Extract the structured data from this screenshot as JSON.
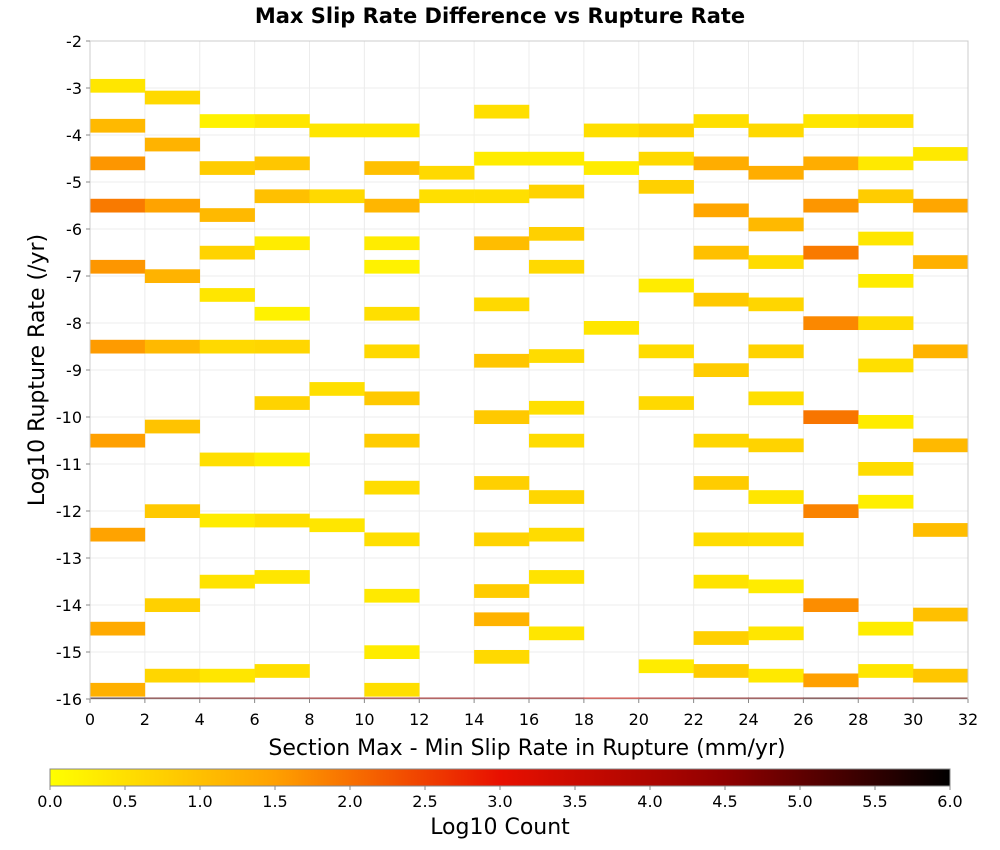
{
  "chart_data": {
    "type": "heatmap",
    "title": "Max Slip Rate Difference vs Rupture Rate",
    "xlabel": "Section Max - Min Slip Rate in Rupture (mm/yr)",
    "ylabel": "Log10 Rupture Rate (/yr)",
    "xlim": [
      0,
      32
    ],
    "ylim": [
      -16,
      -2
    ],
    "x_ticks": [
      "0",
      "2",
      "4",
      "6",
      "8",
      "10",
      "12",
      "14",
      "16",
      "18",
      "20",
      "22",
      "24",
      "26",
      "28",
      "30",
      "32"
    ],
    "y_ticks": [
      "-2",
      "-3",
      "-4",
      "-5",
      "-6",
      "-7",
      "-8",
      "-9",
      "-10",
      "-11",
      "-12",
      "-13",
      "-14",
      "-15",
      "-16"
    ],
    "x_bin_width": 2,
    "y_bin_height": 0.2857,
    "grid": true,
    "colorbar": {
      "label": "Log10 Count",
      "min": 0.0,
      "max": 6.0,
      "ticks": [
        "0.0",
        "0.5",
        "1.0",
        "1.5",
        "2.0",
        "2.5",
        "3.0",
        "3.5",
        "4.0",
        "4.5",
        "5.0",
        "5.5",
        "6.0"
      ],
      "stops": [
        {
          "v": 0.0,
          "color": "#ffff00"
        },
        {
          "v": 1.5,
          "color": "#ffa000"
        },
        {
          "v": 3.0,
          "color": "#e81000"
        },
        {
          "v": 4.5,
          "color": "#900000"
        },
        {
          "v": 6.0,
          "color": "#000000"
        }
      ]
    },
    "columns": [
      {
        "x0": 0,
        "cells": [
          [
            -2.95,
            0.4
          ],
          [
            -3.8,
            1.1
          ],
          [
            -4.6,
            1.6
          ],
          [
            -5.5,
            1.9
          ],
          [
            -6.8,
            1.6
          ],
          [
            -8.5,
            1.55
          ],
          [
            -10.5,
            1.5
          ],
          [
            -12.5,
            1.45
          ],
          [
            -14.5,
            1.35
          ],
          [
            -15.8,
            1.25
          ]
        ]
      },
      {
        "x0": 2,
        "cells": [
          [
            -3.2,
            0.6
          ],
          [
            -4.2,
            1.2
          ],
          [
            -5.5,
            1.45
          ],
          [
            -7.0,
            1.2
          ],
          [
            -8.5,
            1.1
          ],
          [
            -10.2,
            0.95
          ],
          [
            -12.0,
            0.85
          ],
          [
            -14.0,
            0.75
          ],
          [
            -15.5,
            0.65
          ]
        ]
      },
      {
        "x0": 4,
        "cells": [
          [
            -3.7,
            0.2
          ],
          [
            -4.7,
            0.8
          ],
          [
            -5.7,
            1.1
          ],
          [
            -6.5,
            0.7
          ],
          [
            -7.4,
            0.4
          ],
          [
            -8.5,
            0.6
          ],
          [
            -10.9,
            0.5
          ],
          [
            -12.2,
            0.3
          ],
          [
            -13.5,
            0.45
          ],
          [
            -15.5,
            0.4
          ]
        ]
      },
      {
        "x0": 6,
        "cells": [
          [
            -3.7,
            0.4
          ],
          [
            -4.6,
            0.9
          ],
          [
            -5.3,
            1.0
          ],
          [
            -6.3,
            0.3
          ],
          [
            -7.8,
            0.2
          ],
          [
            -8.5,
            0.65
          ],
          [
            -9.7,
            0.7
          ],
          [
            -10.9,
            0.25
          ],
          [
            -12.2,
            0.5
          ],
          [
            -13.4,
            0.4
          ],
          [
            -15.4,
            0.5
          ]
        ]
      },
      {
        "x0": 8,
        "cells": [
          [
            -3.9,
            0.4
          ],
          [
            -5.3,
            0.6
          ],
          [
            -9.4,
            0.5
          ],
          [
            -12.3,
            0.4
          ]
        ]
      },
      {
        "x0": 10,
        "cells": [
          [
            -3.9,
            0.4
          ],
          [
            -4.7,
            1.0
          ],
          [
            -5.5,
            1.15
          ],
          [
            -6.3,
            0.3
          ],
          [
            -6.8,
            0.2
          ],
          [
            -7.8,
            0.5
          ],
          [
            -8.6,
            0.6
          ],
          [
            -9.6,
            0.85
          ],
          [
            -10.5,
            0.8
          ],
          [
            -11.5,
            0.55
          ],
          [
            -12.6,
            0.5
          ],
          [
            -13.8,
            0.35
          ],
          [
            -15.0,
            0.3
          ],
          [
            -15.8,
            0.5
          ]
        ]
      },
      {
        "x0": 12,
        "cells": [
          [
            -4.8,
            0.6
          ],
          [
            -5.3,
            0.5
          ]
        ]
      },
      {
        "x0": 14,
        "cells": [
          [
            -3.5,
            0.5
          ],
          [
            -4.5,
            0.3
          ],
          [
            -5.3,
            0.5
          ],
          [
            -6.3,
            1.05
          ],
          [
            -7.6,
            0.6
          ],
          [
            -8.8,
            0.9
          ],
          [
            -10.0,
            0.85
          ],
          [
            -11.4,
            0.75
          ],
          [
            -12.6,
            0.7
          ],
          [
            -13.7,
            0.8
          ],
          [
            -14.3,
            1.2
          ],
          [
            -15.1,
            0.6
          ]
        ]
      },
      {
        "x0": 16,
        "cells": [
          [
            -4.5,
            0.3
          ],
          [
            -5.2,
            0.7
          ],
          [
            -6.1,
            0.75
          ],
          [
            -6.8,
            0.6
          ],
          [
            -8.7,
            0.55
          ],
          [
            -9.8,
            0.5
          ],
          [
            -10.5,
            0.55
          ],
          [
            -11.7,
            0.65
          ],
          [
            -12.5,
            0.55
          ],
          [
            -13.4,
            0.45
          ],
          [
            -14.6,
            0.4
          ]
        ]
      },
      {
        "x0": 18,
        "cells": [
          [
            -3.9,
            0.5
          ],
          [
            -4.7,
            0.3
          ],
          [
            -8.1,
            0.4
          ]
        ]
      },
      {
        "x0": 20,
        "cells": [
          [
            -3.9,
            0.7
          ],
          [
            -4.5,
            0.6
          ],
          [
            -5.1,
            0.75
          ],
          [
            -7.2,
            0.3
          ],
          [
            -8.6,
            0.55
          ],
          [
            -9.7,
            0.6
          ],
          [
            -15.3,
            0.3
          ]
        ]
      },
      {
        "x0": 22,
        "cells": [
          [
            -3.7,
            0.5
          ],
          [
            -4.6,
            1.3
          ],
          [
            -5.6,
            1.4
          ],
          [
            -6.5,
            1.0
          ],
          [
            -7.5,
            0.85
          ],
          [
            -9.0,
            0.8
          ],
          [
            -10.5,
            0.65
          ],
          [
            -11.4,
            0.8
          ],
          [
            -12.6,
            0.55
          ],
          [
            -13.5,
            0.45
          ],
          [
            -14.7,
            0.75
          ],
          [
            -15.4,
            0.8
          ]
        ]
      },
      {
        "x0": 24,
        "cells": [
          [
            -3.9,
            0.6
          ],
          [
            -4.8,
            1.3
          ],
          [
            -5.9,
            1.1
          ],
          [
            -6.7,
            0.55
          ],
          [
            -7.6,
            0.65
          ],
          [
            -8.6,
            0.7
          ],
          [
            -9.6,
            0.5
          ],
          [
            -10.6,
            0.7
          ],
          [
            -11.7,
            0.4
          ],
          [
            -12.6,
            0.5
          ],
          [
            -13.6,
            0.3
          ],
          [
            -14.6,
            0.4
          ],
          [
            -15.5,
            0.35
          ]
        ]
      },
      {
        "x0": 26,
        "cells": [
          [
            -3.7,
            0.4
          ],
          [
            -4.6,
            1.3
          ],
          [
            -5.5,
            1.6
          ],
          [
            -6.5,
            1.9
          ],
          [
            -8.0,
            1.75
          ],
          [
            -10.0,
            1.95
          ],
          [
            -12.0,
            1.8
          ],
          [
            -14.0,
            1.7
          ],
          [
            -15.6,
            1.5
          ]
        ]
      },
      {
        "x0": 28,
        "cells": [
          [
            -3.7,
            0.5
          ],
          [
            -4.6,
            0.35
          ],
          [
            -5.3,
            0.8
          ],
          [
            -6.2,
            0.4
          ],
          [
            -7.1,
            0.3
          ],
          [
            -8.0,
            0.55
          ],
          [
            -8.9,
            0.5
          ],
          [
            -10.1,
            0.3
          ],
          [
            -11.1,
            0.55
          ],
          [
            -11.8,
            0.25
          ],
          [
            -14.5,
            0.3
          ],
          [
            -15.4,
            0.4
          ]
        ]
      },
      {
        "x0": 30,
        "cells": [
          [
            -4.4,
            0.35
          ],
          [
            -5.5,
            1.4
          ],
          [
            -6.7,
            1.25
          ],
          [
            -8.6,
            1.2
          ],
          [
            -10.6,
            1.1
          ],
          [
            -12.4,
            1.05
          ],
          [
            -14.2,
            1.0
          ],
          [
            -15.5,
            0.9
          ]
        ]
      }
    ],
    "bottom_row": {
      "y": -16.0,
      "values": [
        5.6,
        5.0,
        4.8,
        4.6,
        4.4,
        4.5,
        4.4,
        4.6,
        4.5,
        3.5,
        4.0,
        4.7,
        4.8,
        5.2,
        4.5,
        5.1
      ]
    }
  }
}
